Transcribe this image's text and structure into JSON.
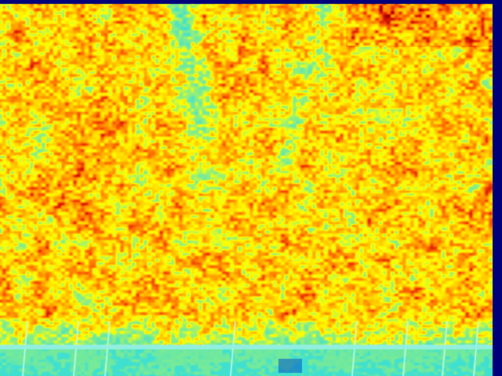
{
  "image": {
    "kind": "false-color thermal image of foliage canopy",
    "palette": [
      "#00007a",
      "#40e0d0",
      "#ffff00",
      "#ffb400",
      "#ff6000",
      "#c80000"
    ],
    "frame_color": "#00007a"
  }
}
